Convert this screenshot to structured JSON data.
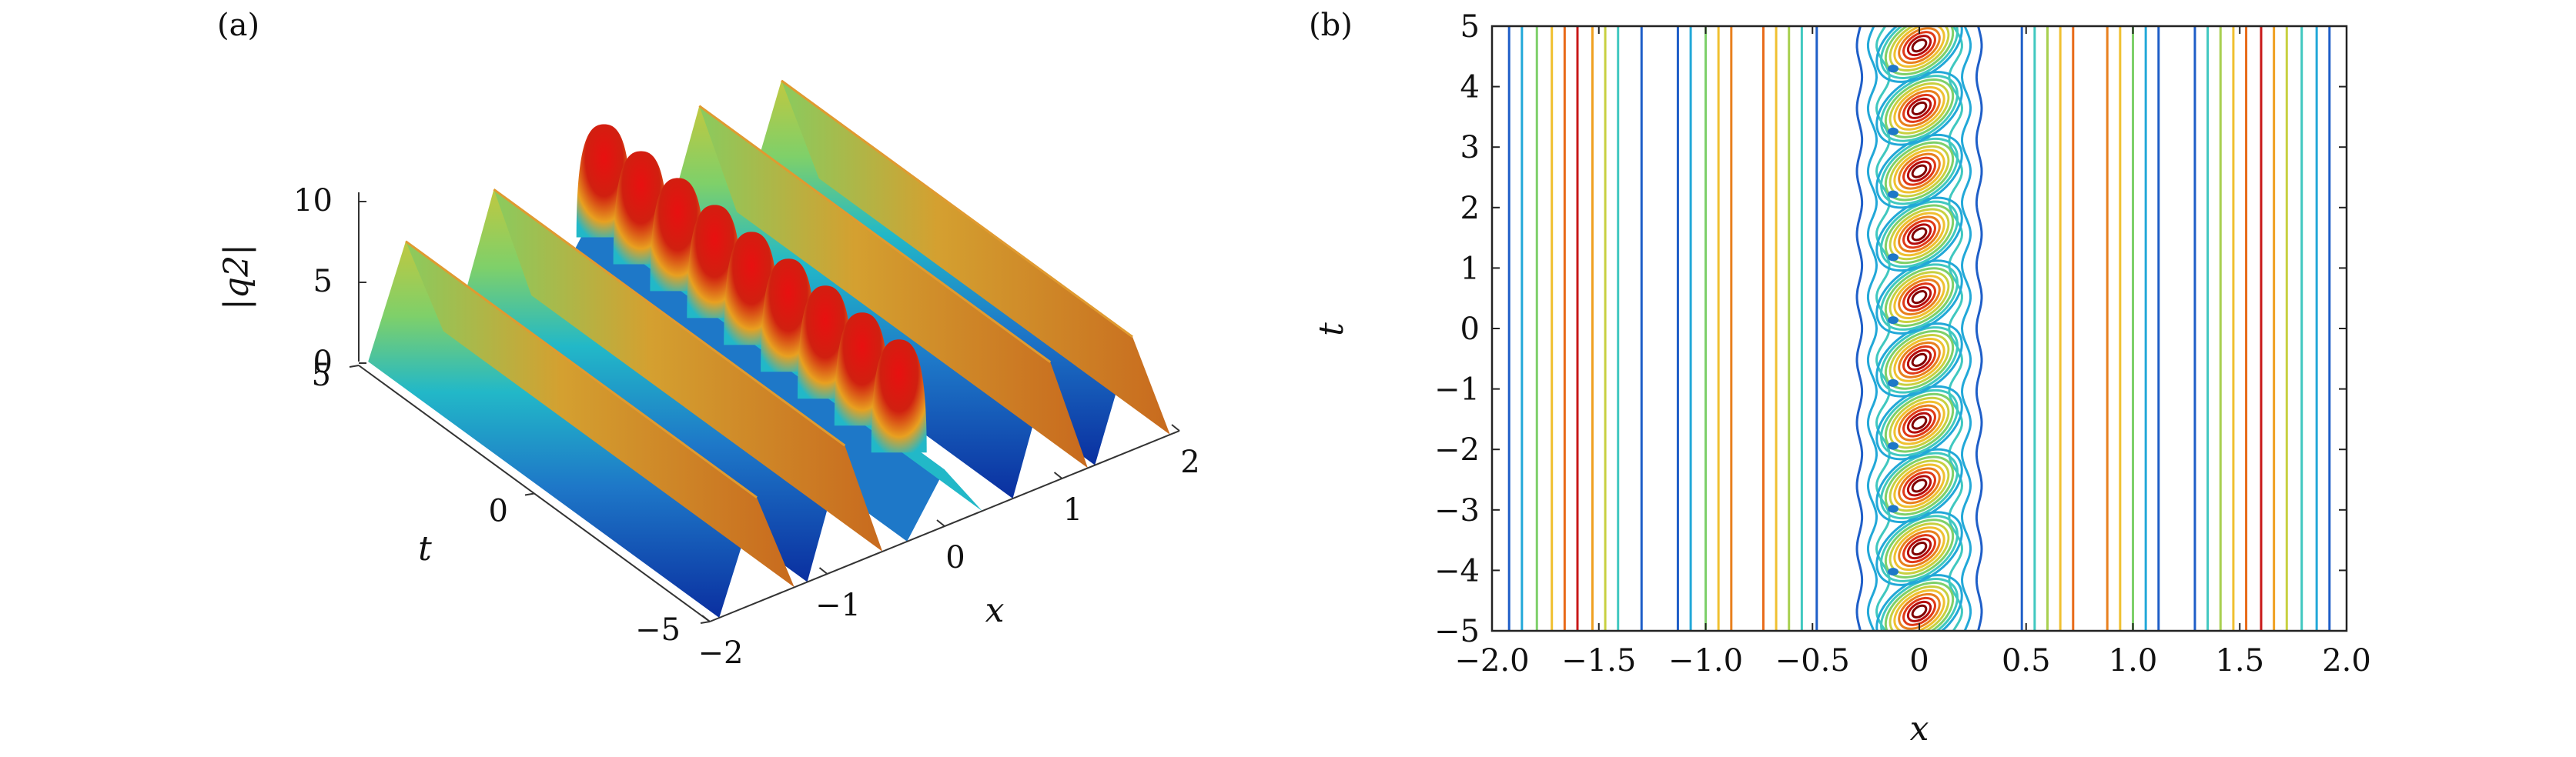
{
  "chart_data": [
    {
      "panel": "(a)",
      "type": "surface",
      "x_label": "x",
      "y_label": "t",
      "z_label": "|q2|",
      "x_range": [
        -2,
        2
      ],
      "y_range": [
        -5,
        5
      ],
      "z_range": [
        0,
        10
      ],
      "x_ticks": [
        "−2",
        "−1",
        "0",
        "1",
        "2"
      ],
      "y_ticks": [
        "−5",
        "0",
        "5"
      ],
      "z_ticks": [
        "0",
        "5",
        "10"
      ],
      "colormap": [
        "#0a2fa0",
        "#1e78c8",
        "#22b8c8",
        "#7ed06a",
        "#f0c030",
        "#e86a18",
        "#b40c0c"
      ],
      "ridges": [
        {
          "x": -1.6,
          "peak": 6.5,
          "type": "line soliton"
        },
        {
          "x": -0.85,
          "peak": 7.5,
          "type": "line soliton"
        },
        {
          "x": 0.0,
          "peak": 9.5,
          "type": "breather chain",
          "period_t": 1.05
        },
        {
          "x": 0.9,
          "peak": 7.5,
          "type": "line soliton"
        },
        {
          "x": 1.6,
          "peak": 7.0,
          "type": "line soliton"
        }
      ]
    },
    {
      "panel": "(b)",
      "type": "contour",
      "x_label": "x",
      "y_label": "t",
      "x_range": [
        -2,
        2
      ],
      "y_range": [
        -5,
        5
      ],
      "x_ticks": [
        "−2.0",
        "−1.5",
        "−1.0",
        "−0.5",
        "0",
        "0.5",
        "1.0",
        "1.5",
        "2.0"
      ],
      "y_ticks": [
        "−5",
        "−4",
        "−3",
        "−2",
        "−1",
        "0",
        "1",
        "2",
        "3",
        "4",
        "5"
      ],
      "vertical_contours": [
        {
          "x": -1.92,
          "c": "#1e5ec8"
        },
        {
          "x": -1.86,
          "c": "#22a8d8"
        },
        {
          "x": -1.79,
          "c": "#7ed06a"
        },
        {
          "x": -1.72,
          "c": "#f0c030"
        },
        {
          "x": -1.66,
          "c": "#e86a18"
        },
        {
          "x": -1.6,
          "c": "#c81818"
        },
        {
          "x": -1.53,
          "c": "#f0a020"
        },
        {
          "x": -1.47,
          "c": "#c8d040"
        },
        {
          "x": -1.41,
          "c": "#40c8c0"
        },
        {
          "x": -1.3,
          "c": "#1e5ec8"
        },
        {
          "x": -1.13,
          "c": "#1e5ec8"
        },
        {
          "x": -1.07,
          "c": "#22a8d8"
        },
        {
          "x": -1.0,
          "c": "#7ed06a"
        },
        {
          "x": -0.94,
          "c": "#f0c030"
        },
        {
          "x": -0.88,
          "c": "#e8801e"
        },
        {
          "x": -0.73,
          "c": "#e86a18"
        },
        {
          "x": -0.67,
          "c": "#f0c030"
        },
        {
          "x": -0.61,
          "c": "#a8d050"
        },
        {
          "x": -0.55,
          "c": "#40c8c0"
        },
        {
          "x": -0.48,
          "c": "#1e5ec8"
        },
        {
          "x": 0.48,
          "c": "#1e5ec8"
        },
        {
          "x": 0.54,
          "c": "#40c8c0"
        },
        {
          "x": 0.6,
          "c": "#a8d050"
        },
        {
          "x": 0.66,
          "c": "#f0c030"
        },
        {
          "x": 0.72,
          "c": "#e86a18"
        },
        {
          "x": 0.88,
          "c": "#e8801e"
        },
        {
          "x": 0.94,
          "c": "#f0c030"
        },
        {
          "x": 1.0,
          "c": "#7ed06a"
        },
        {
          "x": 1.06,
          "c": "#22a8d8"
        },
        {
          "x": 1.12,
          "c": "#1e5ec8"
        },
        {
          "x": 1.29,
          "c": "#1e5ec8"
        },
        {
          "x": 1.35,
          "c": "#40c8c0"
        },
        {
          "x": 1.41,
          "c": "#a8d050"
        },
        {
          "x": 1.47,
          "c": "#f0c030"
        },
        {
          "x": 1.53,
          "c": "#e86a18"
        },
        {
          "x": 1.6,
          "c": "#c81818"
        },
        {
          "x": 1.66,
          "c": "#f0a020"
        },
        {
          "x": 1.72,
          "c": "#c8d040"
        },
        {
          "x": 1.79,
          "c": "#40c8c0"
        },
        {
          "x": 1.86,
          "c": "#22a8d8"
        },
        {
          "x": 1.92,
          "c": "#1e5ec8"
        }
      ],
      "breather_centers_t": [
        -4.68,
        -3.64,
        -2.6,
        -1.56,
        -0.52,
        0.52,
        1.56,
        2.6,
        3.64,
        4.68
      ],
      "breather_x": 0.0
    }
  ]
}
